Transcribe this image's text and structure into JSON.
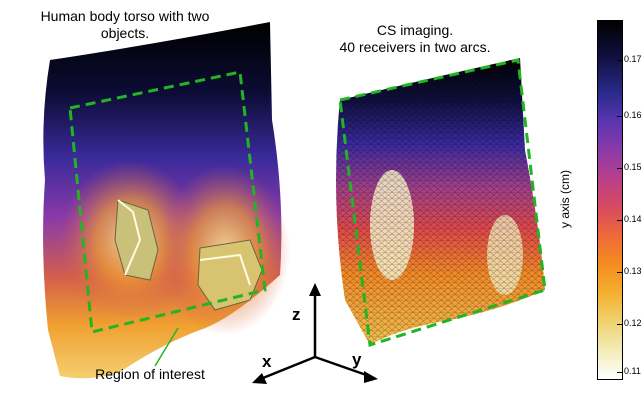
{
  "left_panel": {
    "title_line1": "Human body torso with two",
    "title_line2": "objects.",
    "roi_label": "Region of interest"
  },
  "right_panel": {
    "title_line1": "CS imaging.",
    "title_line2": "40 receivers in two arcs."
  },
  "axes": {
    "x": "x",
    "y": "y",
    "z": "z"
  },
  "colorbar": {
    "label": "y axis (cm)",
    "ticks": [
      "0.17",
      "0.16",
      "0.15",
      "0.14",
      "0.13",
      "0.12",
      "0.11"
    ]
  },
  "colors": {
    "roi_dash": "#22b422",
    "bar_top": "#000000",
    "bar_bottom": "#ffffff"
  }
}
